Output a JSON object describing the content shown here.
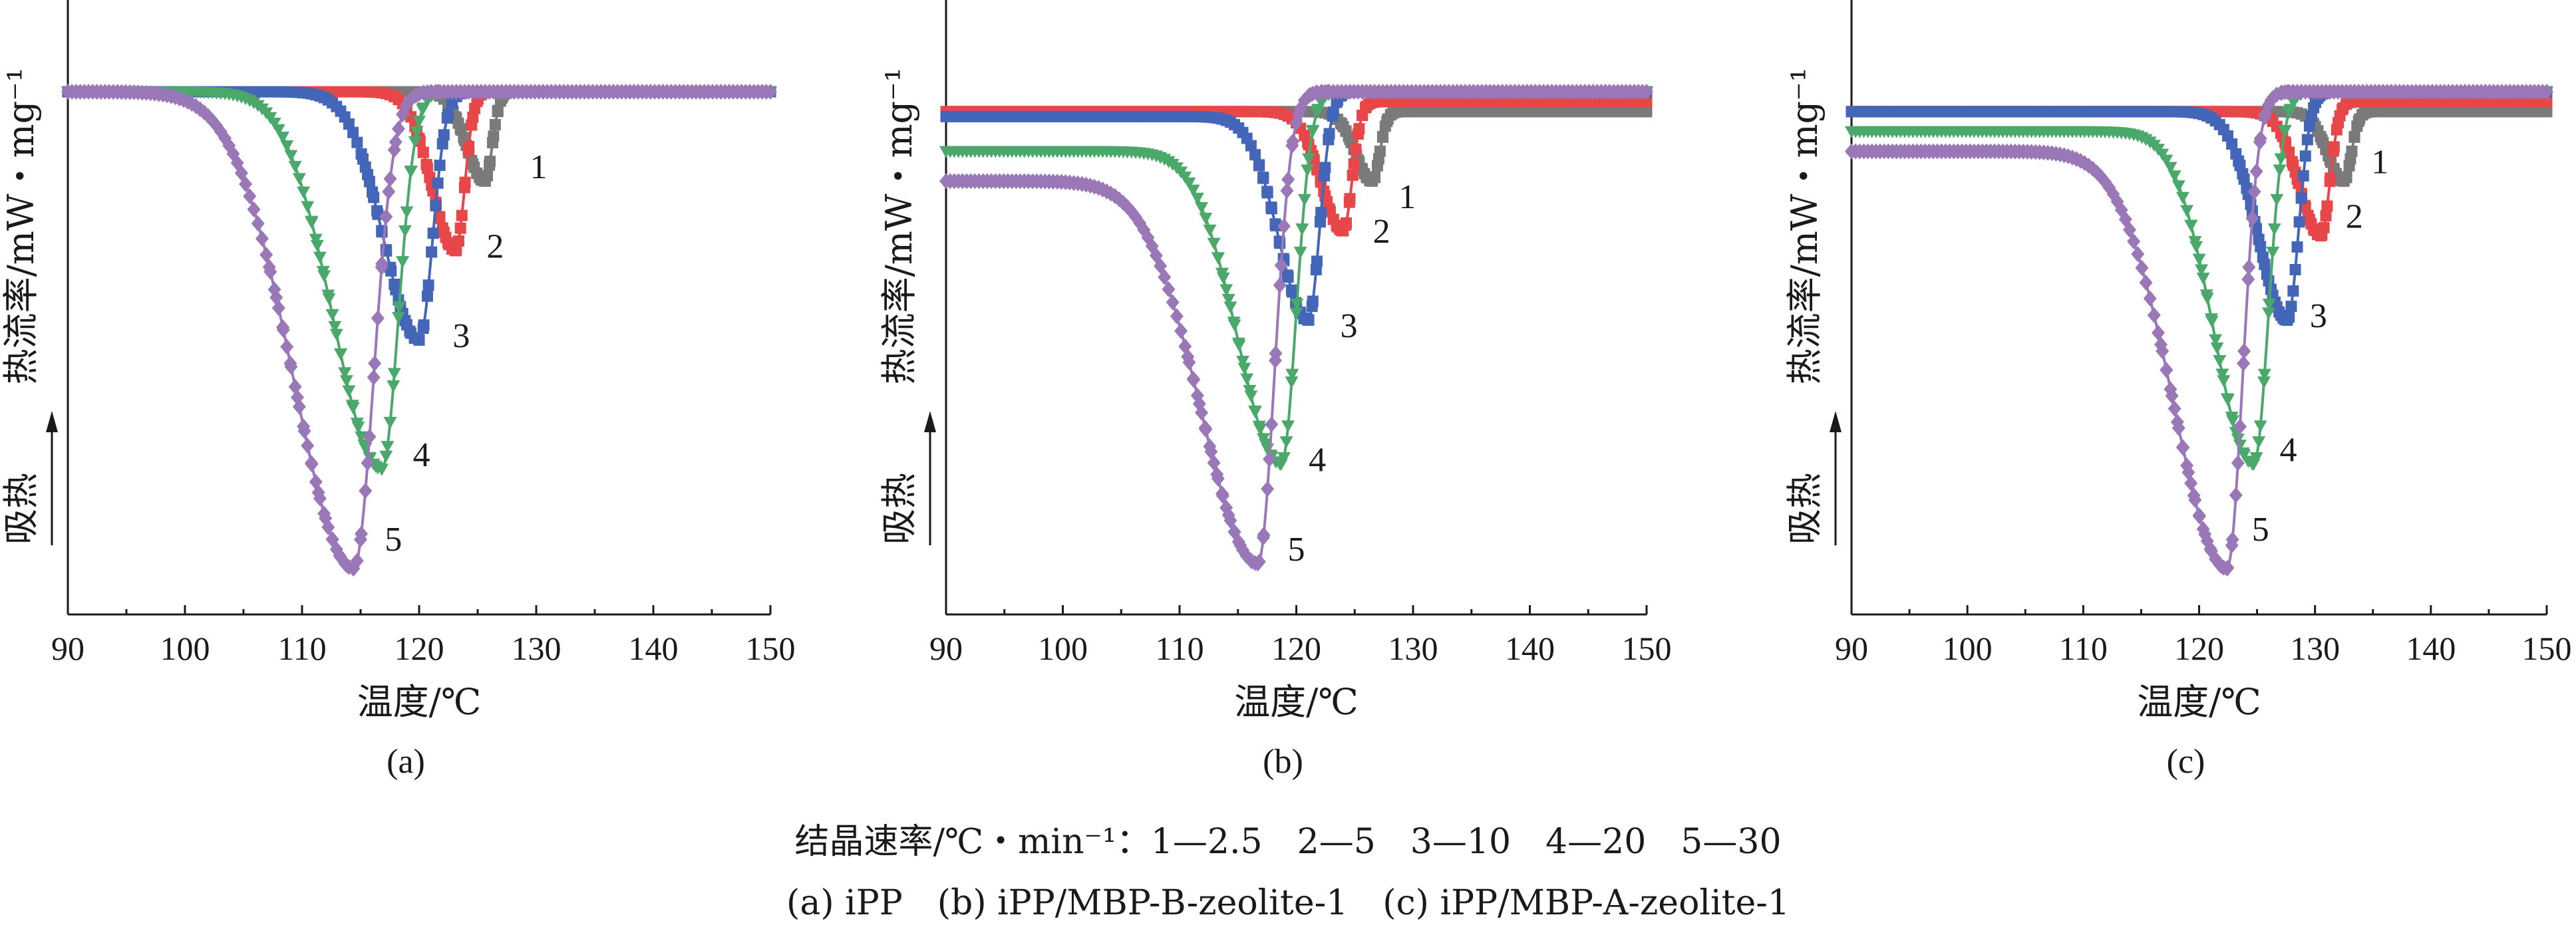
{
  "chart_data": [
    {
      "type": "line",
      "panel_label": "(a)",
      "xlabel": "温度/℃",
      "ylabel": "热流率/mW・mg⁻¹",
      "endo_label": "吸热",
      "xlim": [
        90,
        150
      ],
      "x_ticks": [
        "90",
        "100",
        "110",
        "120",
        "130",
        "140",
        "150"
      ],
      "baseline": 0,
      "series": [
        {
          "name": "1",
          "color": "#7a7a7a",
          "marker": "square",
          "tail": 0.0,
          "peak_x": 125.6,
          "depth": 0.18,
          "left_width": 2.2,
          "right_width": 0.9
        },
        {
          "name": "2",
          "color": "#e8474a",
          "marker": "square",
          "tail": 0.0,
          "peak_x": 123.1,
          "depth": 0.32,
          "left_width": 2.8,
          "right_width": 1.1
        },
        {
          "name": "3",
          "color": "#4466b8",
          "marker": "square",
          "tail": 0.0,
          "peak_x": 120.0,
          "depth": 0.5,
          "left_width": 4.2,
          "right_width": 1.6
        },
        {
          "name": "4",
          "color": "#4aa86a",
          "marker": "triangle",
          "tail": 0.0,
          "peak_x": 116.8,
          "depth": 0.76,
          "left_width": 5.8,
          "right_width": 2.0
        },
        {
          "name": "5",
          "color": "#9a78b8",
          "marker": "diamond",
          "tail": 0.0,
          "peak_x": 114.4,
          "depth": 0.96,
          "left_width": 7.2,
          "right_width": 2.4
        }
      ],
      "curve_labels": [
        {
          "text": "1",
          "x": 130.2,
          "y": -0.15
        },
        {
          "text": "2",
          "x": 126.5,
          "y": -0.31
        },
        {
          "text": "3",
          "x": 123.6,
          "y": -0.49
        },
        {
          "text": "4",
          "x": 120.2,
          "y": -0.73
        },
        {
          "text": "5",
          "x": 117.8,
          "y": -0.9
        }
      ]
    },
    {
      "type": "line",
      "panel_label": "(b)",
      "xlabel": "温度/℃",
      "ylabel": "热流率/mW・mg⁻¹",
      "endo_label": "吸热",
      "xlim": [
        90,
        150
      ],
      "x_ticks": [
        "90",
        "100",
        "110",
        "120",
        "130",
        "140",
        "150"
      ],
      "baseline": 0,
      "series": [
        {
          "name": "1",
          "color": "#7a7a7a",
          "marker": "square",
          "tail": 0.0,
          "peak_x": 126.5,
          "depth": 0.14,
          "left_width": 2.0,
          "right_width": 0.9
        },
        {
          "name": "2",
          "color": "#e8474a",
          "marker": "square",
          "tail": -0.02,
          "peak_x": 124.0,
          "depth": 0.26,
          "left_width": 2.6,
          "right_width": 1.1
        },
        {
          "name": "3",
          "color": "#4466b8",
          "marker": "square",
          "tail": -0.05,
          "peak_x": 121.0,
          "depth": 0.46,
          "left_width": 3.5,
          "right_width": 1.4
        },
        {
          "name": "4",
          "color": "#4aa86a",
          "marker": "triangle",
          "tail": -0.12,
          "peak_x": 118.7,
          "depth": 0.75,
          "left_width": 5.2,
          "right_width": 1.8
        },
        {
          "name": "5",
          "color": "#9a78b8",
          "marker": "diamond",
          "tail": -0.18,
          "peak_x": 116.7,
          "depth": 0.95,
          "left_width": 6.8,
          "right_width": 2.0
        }
      ],
      "curve_labels": [
        {
          "text": "1",
          "x": 129.5,
          "y": -0.21
        },
        {
          "text": "2",
          "x": 127.3,
          "y": -0.28
        },
        {
          "text": "3",
          "x": 124.5,
          "y": -0.47
        },
        {
          "text": "4",
          "x": 121.8,
          "y": -0.74
        },
        {
          "text": "5",
          "x": 120.0,
          "y": -0.92
        }
      ]
    },
    {
      "type": "line",
      "panel_label": "(c)",
      "xlabel": "温度/℃",
      "ylabel": "热流率/mW・mg⁻¹",
      "endo_label": "吸热",
      "xlim": [
        90,
        150
      ],
      "x_ticks": [
        "90",
        "100",
        "110",
        "120",
        "130",
        "140",
        "150"
      ],
      "baseline": 0,
      "series": [
        {
          "name": "1",
          "color": "#7a7a7a",
          "marker": "square",
          "tail": 0.0,
          "peak_x": 132.5,
          "depth": 0.14,
          "left_width": 2.0,
          "right_width": 0.9
        },
        {
          "name": "2",
          "color": "#e8474a",
          "marker": "square",
          "tail": -0.02,
          "peak_x": 130.5,
          "depth": 0.27,
          "left_width": 2.6,
          "right_width": 1.1
        },
        {
          "name": "3",
          "color": "#4466b8",
          "marker": "square",
          "tail": -0.04,
          "peak_x": 127.6,
          "depth": 0.46,
          "left_width": 3.5,
          "right_width": 1.4
        },
        {
          "name": "4",
          "color": "#4aa86a",
          "marker": "triangle",
          "tail": -0.08,
          "peak_x": 124.7,
          "depth": 0.75,
          "left_width": 4.8,
          "right_width": 1.8
        },
        {
          "name": "5",
          "color": "#9a78b8",
          "marker": "diamond",
          "tail": -0.12,
          "peak_x": 122.4,
          "depth": 0.96,
          "left_width": 6.5,
          "right_width": 1.9
        }
      ],
      "curve_labels": [
        {
          "text": "1",
          "x": 135.6,
          "y": -0.14
        },
        {
          "text": "2",
          "x": 133.4,
          "y": -0.25
        },
        {
          "text": "3",
          "x": 130.3,
          "y": -0.45
        },
        {
          "text": "4",
          "x": 127.7,
          "y": -0.72
        },
        {
          "text": "5",
          "x": 125.3,
          "y": -0.88
        }
      ]
    }
  ],
  "caption": {
    "rates_line": "结晶速率/℃・min⁻¹：1—2.5　2—5　3—10　4—20　5—30",
    "samples_line": "(a) iPP　(b) iPP/MBP-B-zeolite-1　(c) iPP/MBP-A-zeolite-1"
  }
}
